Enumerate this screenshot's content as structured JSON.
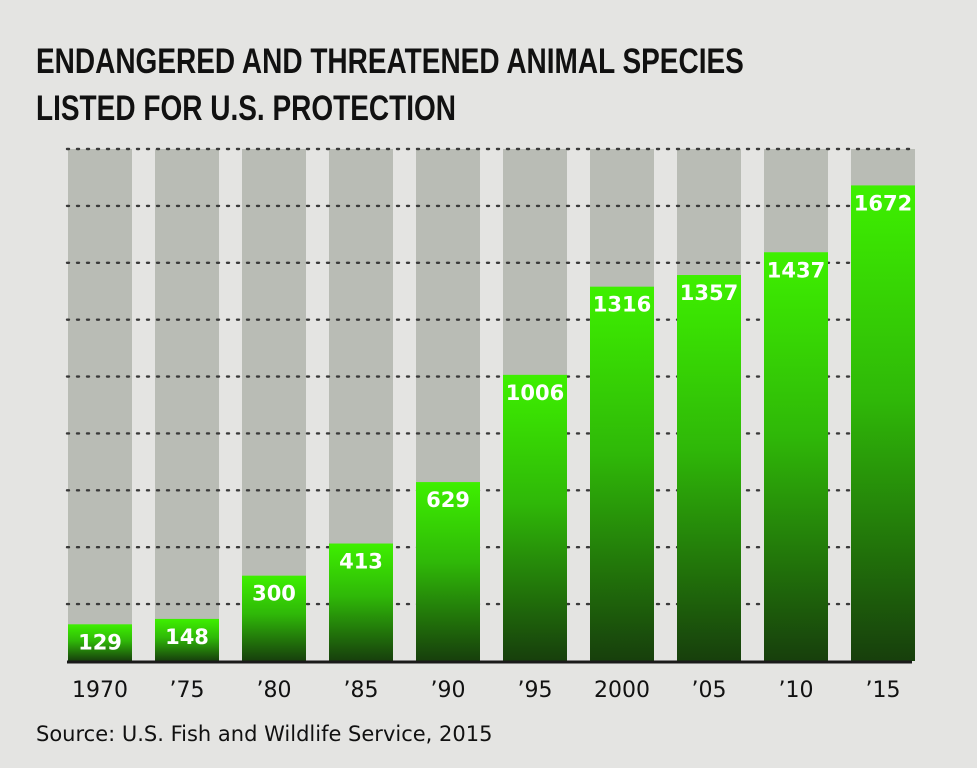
{
  "title_lines": [
    "ENDANGERED AND THREATENED ANIMAL SPECIES",
    "LISTED FOR U.S. PROTECTION"
  ],
  "source": "Source: U.S. Fish and Wildlife Service, 2015",
  "colors": {
    "background": "#e4e4e2",
    "track": "#b9bcb5",
    "bar_top": "#3ef000",
    "bar_bottom": "#173f0c",
    "label": "#ffffff",
    "text": "#111111"
  },
  "chart_data": {
    "type": "bar",
    "categories": [
      "1970",
      "’75",
      "’80",
      "’85",
      "’90",
      "’95",
      "2000",
      "’05",
      "’10",
      "’15"
    ],
    "values": [
      129,
      148,
      300,
      413,
      629,
      1006,
      1316,
      1357,
      1437,
      1672
    ],
    "title": "ENDANGERED AND THREATENED ANIMAL SPECIES LISTED FOR U.S. PROTECTION",
    "xlabel": "",
    "ylabel": "",
    "ylim": [
      0,
      1800
    ],
    "grid": true,
    "data_labels": true,
    "legend": "none"
  }
}
